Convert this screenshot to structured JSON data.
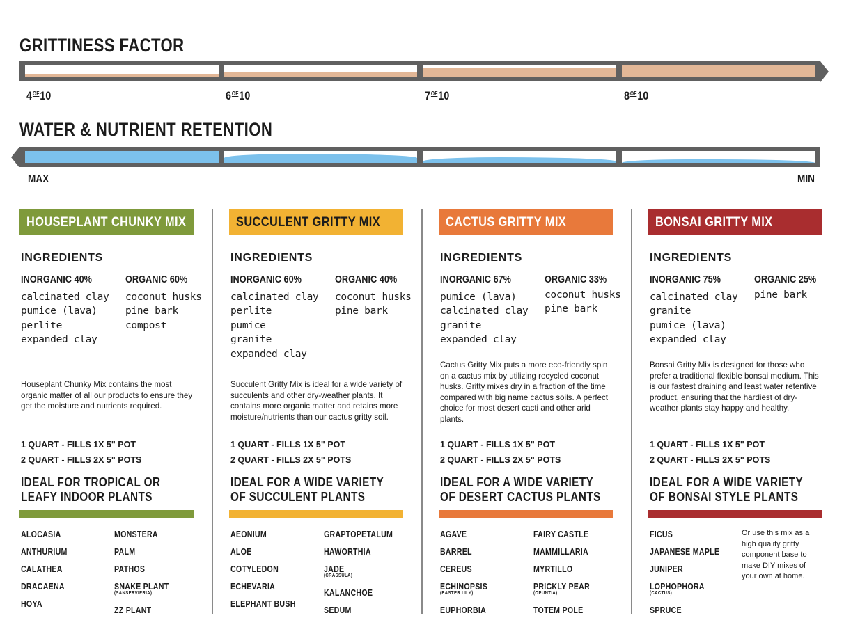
{
  "grittiness": {
    "title": "GRITTINESS FACTOR",
    "segments": [
      {
        "value": "4",
        "of": "OF",
        "max": "10",
        "fill_level": 0.25
      },
      {
        "value": "6",
        "of": "OF",
        "max": "10",
        "fill_level": 0.5
      },
      {
        "value": "7",
        "of": "OF",
        "max": "10",
        "fill_level": 0.75
      },
      {
        "value": "8",
        "of": "OF",
        "max": "10",
        "fill_level": 1.0
      }
    ],
    "fill_color": "#e2b797"
  },
  "retention": {
    "title": "WATER & NUTRIENT RETENTION",
    "max_label": "MAX",
    "min_label": "MIN",
    "levels": [
      1.0,
      0.75,
      0.5,
      0.3
    ],
    "fill_color": "#7cc1ec"
  },
  "bar_color": "#606060",
  "columns": [
    {
      "title": "HOUSEPLANT CHUNKY MIX",
      "color": "#7f9a3b",
      "text_color": "#ffffff",
      "ingredients_label": "INGREDIENTS",
      "inorganic_label": "INORGANIC 40%",
      "inorganic": [
        "calcinated clay",
        "pumice (lava)",
        "perlite",
        "expanded clay"
      ],
      "organic_label": "ORGANIC 60%",
      "organic": [
        "coconut husks",
        "pine bark",
        "compost"
      ],
      "description": "Houseplant Chunky Mix contains the most organic matter of all our products to ensure they get the moisture and nutrients required.",
      "quart1": "1 QUART - FILLS 1X 5\" POT",
      "quart2": "2 QUART - FILLS 2X 5\" POTS",
      "ideal": [
        "IDEAL FOR TROPICAL OR",
        "LEAFY INDOOR PLANTS"
      ],
      "plants_left": [
        {
          "name": "ALOCASIA"
        },
        {
          "name": "ANTHURIUM"
        },
        {
          "name": "CALATHEA"
        },
        {
          "name": "DRACAENA"
        },
        {
          "name": "HOYA"
        }
      ],
      "plants_right": [
        {
          "name": "MONSTERA"
        },
        {
          "name": "PALM"
        },
        {
          "name": "PATHOS"
        },
        {
          "name": "SNAKE PLANT",
          "sub": "(SANSERVIERIA)"
        },
        {
          "name": "ZZ PLANT"
        }
      ]
    },
    {
      "title": "SUCCULENT GRITTY MIX",
      "color": "#f2b233",
      "text_color": "#1c1c1c",
      "ingredients_label": "INGREDIENTS",
      "inorganic_label": "INORGANIC 60%",
      "inorganic": [
        "calcinated clay",
        "perlite",
        "pumice",
        "granite",
        "expanded clay"
      ],
      "organic_label": "ORGANIC 40%",
      "organic": [
        "coconut husks",
        "pine bark"
      ],
      "description": "Succulent Gritty Mix is ideal for a wide variety of succulents and other dry-weather plants. It contains more organic matter and retains more moisture/nutrients than our cactus gritty soil.",
      "quart1": "1 QUART - FILLS 1X 5\" POT",
      "quart2": "2 QUART - FILLS 2X 5\" POTS",
      "ideal": [
        "IDEAL FOR A WIDE VARIETY",
        "OF SUCCULENT PLANTS"
      ],
      "plants_left": [
        {
          "name": "AEONIUM"
        },
        {
          "name": "ALOE"
        },
        {
          "name": "COTYLEDON"
        },
        {
          "name": "ECHEVARIA"
        },
        {
          "name": "ELEPHANT BUSH"
        }
      ],
      "plants_right": [
        {
          "name": "GRAPTOPETALUM"
        },
        {
          "name": "HAWORTHIA"
        },
        {
          "name": "JADE",
          "sub": "(CRASSULA)"
        },
        {
          "name": "KALANCHOE"
        },
        {
          "name": "SEDUM"
        }
      ]
    },
    {
      "title": "CACTUS GRITTY MIX",
      "color": "#e8793b",
      "text_color": "#ffffff",
      "ingredients_label": "INGREDIENTS",
      "inorganic_label": "INORGANIC 67%",
      "inorganic": [
        "pumice (lava)",
        "calcinated clay",
        "granite",
        "expanded clay"
      ],
      "organic_label": "ORGANIC 33%",
      "organic": [
        "coconut husks",
        "pine bark"
      ],
      "description": "Cactus Gritty Mix puts a more eco-friendly spin on a cactus mix by utilizing recycled coconut husks. Gritty mixes dry in a fraction of the time compared with big name cactus soils. A perfect choice for most desert cacti and other arid plants.",
      "quart1": "1 QUART - FILLS 1X 5\" POT",
      "quart2": "2 QUART - FILLS 2X 5\" POTS",
      "ideal": [
        "IDEAL FOR A WIDE VARIETY",
        "OF DESERT CACTUS PLANTS"
      ],
      "plants_left": [
        {
          "name": "AGAVE"
        },
        {
          "name": "BARREL"
        },
        {
          "name": "CEREUS"
        },
        {
          "name": "ECHINOPSIS",
          "sub": "(EASTER LILY)"
        },
        {
          "name": "EUPHORBIA"
        }
      ],
      "plants_right": [
        {
          "name": "FAIRY CASTLE"
        },
        {
          "name": "MAMMILLARIA"
        },
        {
          "name": "MYRTILLO"
        },
        {
          "name": "PRICKLY PEAR",
          "sub": "(OPUNTIA)"
        },
        {
          "name": "TOTEM POLE"
        }
      ]
    },
    {
      "title": "BONSAI GRITTY MIX",
      "color": "#a92d2f",
      "text_color": "#ffffff",
      "ingredients_label": "INGREDIENTS",
      "inorganic_label": "INORGANIC 75%",
      "inorganic": [
        "calcinated clay",
        "granite",
        "pumice (lava)",
        "expanded clay"
      ],
      "organic_label": "ORGANIC 25%",
      "organic": [
        "pine bark"
      ],
      "description": "Bonsai Gritty Mix is designed for those who prefer a traditional flexible bonsai medium. This is our fastest draining and least water retentive product, ensuring that the hardiest of dry-weather plants stay happy and healthy.",
      "quart1": "1 QUART - FILLS 1X 5\" POT",
      "quart2": "2 QUART - FILLS 2X 5\" POTS",
      "ideal": [
        "IDEAL FOR A WIDE VARIETY",
        "OF BONSAI STYLE PLANTS"
      ],
      "plants_left": [
        {
          "name": "FICUS"
        },
        {
          "name": "JAPANESE MAPLE"
        },
        {
          "name": "JUNIPER"
        },
        {
          "name": "LOPHOPHORA",
          "sub": "(CACTUS)"
        },
        {
          "name": "SPRUCE"
        }
      ],
      "note": "Or use this mix as a high quality gritty component base to make DIY mixes of your own at home."
    }
  ]
}
